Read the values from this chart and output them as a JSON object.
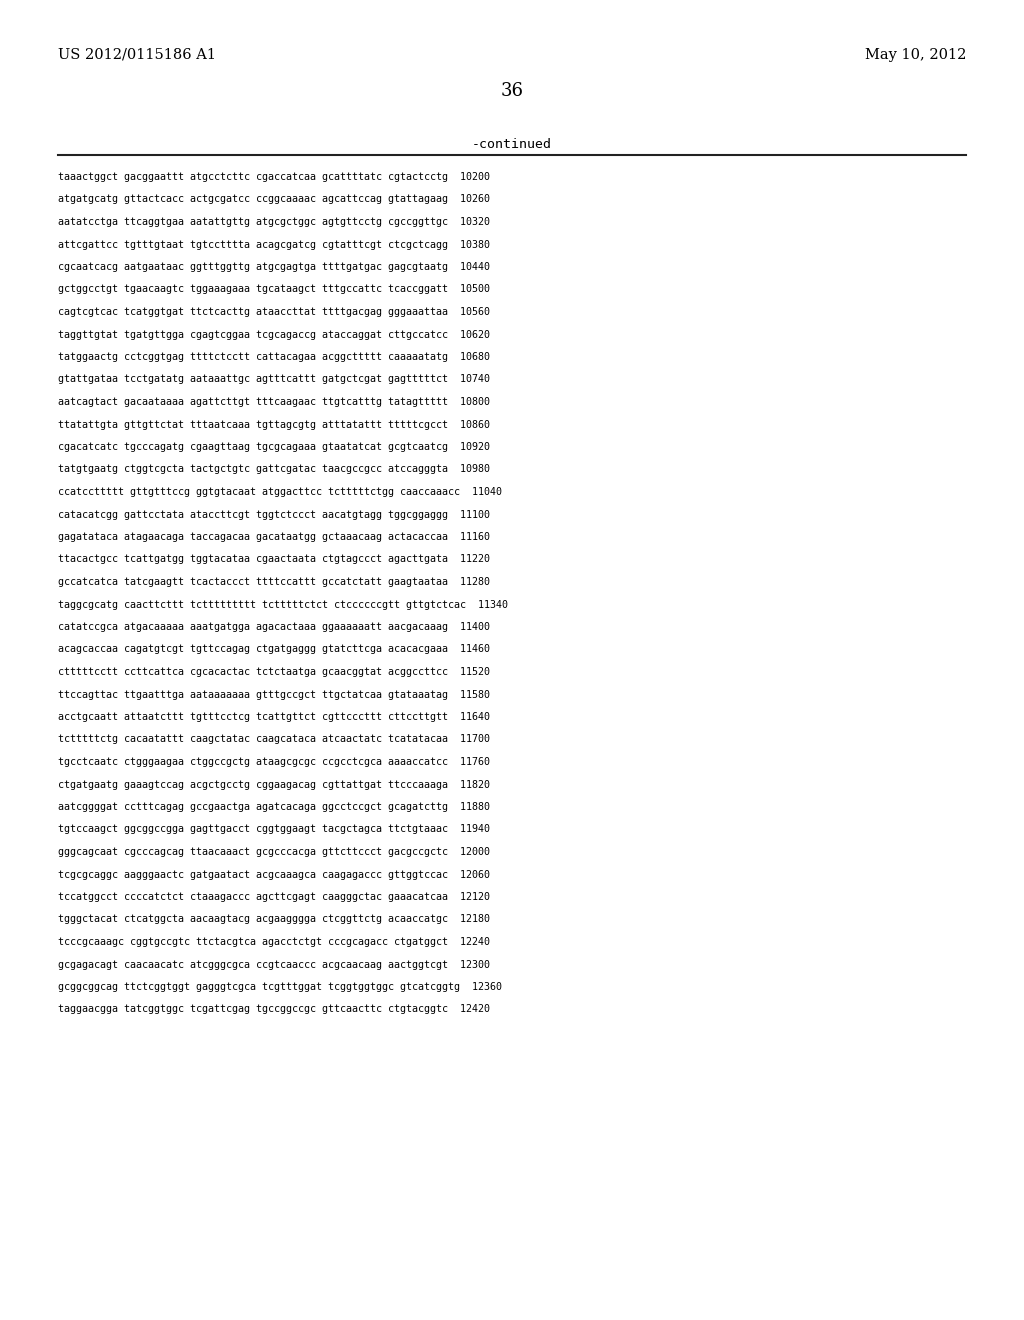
{
  "header_left": "US 2012/0115186 A1",
  "header_right": "May 10, 2012",
  "page_number": "36",
  "continued_label": "-continued",
  "background_color": "#ffffff",
  "text_color": "#000000",
  "font_size_header": 10.5,
  "font_size_page": 13,
  "font_size_content": 7.2,
  "font_size_continued": 9.5,
  "sequence_lines": [
    "taaactggct gacggaattt atgcctcttc cgaccatcaa gcattttatc cgtactcctg  10200",
    "atgatgcatg gttactcacc actgcgatcc ccggcaaaac agcattccag gtattagaag  10260",
    "aatatcctga ttcaggtgaa aatattgttg atgcgctggc agtgttcctg cgccggttgc  10320",
    "attcgattcc tgtttgtaat tgtcctttta acagcgatcg cgtatttcgt ctcgctcagg  10380",
    "cgcaatcacg aatgaataac ggtttggttg atgcgagtga ttttgatgac gagcgtaatg  10440",
    "gctggcctgt tgaacaagtc tggaaagaaa tgcataagct tttgccattc tcaccggatt  10500",
    "cagtcgtcac tcatggtgat ttctcacttg ataaccttat ttttgacgag gggaaattaa  10560",
    "taggttgtat tgatgttgga cgagtcggaa tcgcagaccg ataccaggat cttgccatcc  10620",
    "tatggaactg cctcggtgag ttttctcctt cattacagaa acggcttttt caaaaatatg  10680",
    "gtattgataa tcctgatatg aataaattgc agtttcattt gatgctcgat gagtttttct  10740",
    "aatcagtact gacaataaaa agattcttgt tttcaagaac ttgtcatttg tatagttttt  10800",
    "ttatattgta gttgttctat tttaatcaaa tgttagcgtg atttatattt tttttcgcct  10860",
    "cgacatcatc tgcccagatg cgaagttaag tgcgcagaaa gtaatatcat gcgtcaatcg  10920",
    "tatgtgaatg ctggtcgcta tactgctgtc gattcgatac taacgccgcc atccagggta  10980",
    "ccatccttttt gttgtttccg ggtgtacaat atggacttcc tctttttctgg caaccaaacc  11040",
    "catacatcgg gattcctata ataccttcgt tggtctccct aacatgtagg tggcggaggg  11100",
    "gagatataca atagaacaga taccagacaa gacataatgg gctaaacaag actacaccaa  11160",
    "ttacactgcc tcattgatgg tggtacataa cgaactaata ctgtagccct agacttgata  11220",
    "gccatcatca tatcgaagtt tcactaccct ttttccattt gccatctatt gaagtaataa  11280",
    "taggcgcatg caacttcttt tcttttttttt tctttttctct ctccccccgtt gttgtctcac  11340",
    "catatccgca atgacaaaaa aaatgatgga agacactaaa ggaaaaaatt aacgacaaag  11400",
    "acagcaccaa cagatgtcgt tgttccagag ctgatgaggg gtatcttcga acacacgaaa  11460",
    "ctttttcctt ccttcattca cgcacactac tctctaatga gcaacggtat acggccttcc  11520",
    "ttccagttac ttgaatttga aataaaaaaa gtttgccgct ttgctatcaa gtataaatag  11580",
    "acctgcaatt attaatcttt tgtttcctcg tcattgttct cgttcccttt cttccttgtt  11640",
    "tctttttctg cacaatattt caagctatac caagcataca atcaactatc tcatatacaa  11700",
    "tgcctcaatc ctgggaagaa ctggccgctg ataagcgcgc ccgcctcgca aaaaccatcc  11760",
    "ctgatgaatg gaaagtccag acgctgcctg cggaagacag cgttattgat ttcccaaaga  11820",
    "aatcggggat cctttcagag gccgaactga agatcacaga ggcctccgct gcagatcttg  11880",
    "tgtccaagct ggcggccgga gagttgacct cggtggaagt tacgctagca ttctgtaaac  11940",
    "gggcagcaat cgcccagcag ttaacaaact gcgcccacga gttcttccct gacgccgctc  12000",
    "tcgcgcaggc aagggaactc gatgaatact acgcaaagca caagagaccc gttggtccac  12060",
    "tccatggcct ccccatctct ctaaagaccc agcttcgagt caagggctac gaaacatcaa  12120",
    "tgggctacat ctcatggcta aacaagtacg acgaagggga ctcggttctg acaaccatgc  12180",
    "tcccgcaaagc cggtgccgtc ttctacgtca agacctctgt cccgcagacc ctgatggct  12240",
    "gcgagacagt caacaacatc atcgggcgca ccgtcaaccc acgcaacaag aactggtcgt  12300",
    "gcggcggcag ttctcggtggt gagggtcgca tcgtttggat tcggtggtggc gtcatcggtg  12360",
    "taggaacgga tatcggtggc tcgattcgag tgccggccgc gttcaacttc ctgtacggtc  12420"
  ]
}
